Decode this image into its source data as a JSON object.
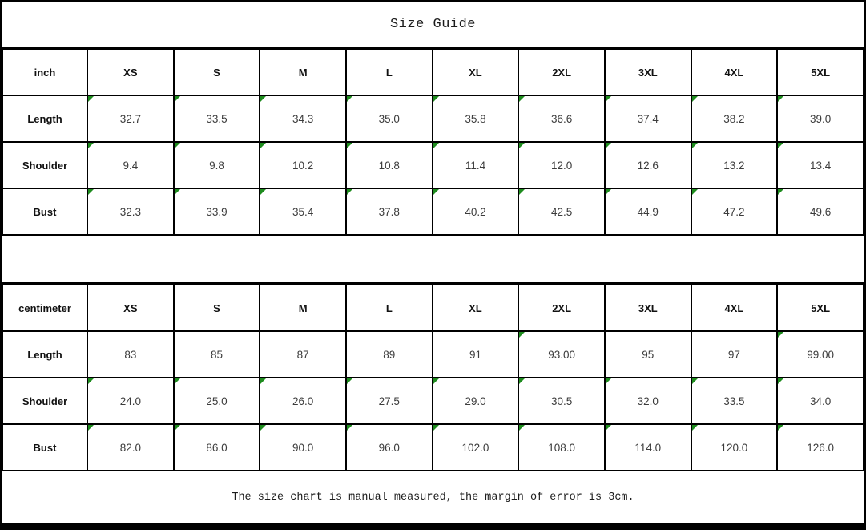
{
  "title": "Size Guide",
  "colors": {
    "marker_green": "#1e8c1e",
    "border_black": "#000000",
    "cell_text": "#3c3c3c"
  },
  "tables": [
    {
      "unit_label": "inch",
      "sizes": [
        "XS",
        "S",
        "M",
        "L",
        "XL",
        "2XL",
        "3XL",
        "4XL",
        "5XL"
      ],
      "rows": [
        {
          "label": "Length",
          "values": [
            "32.7",
            "33.5",
            "34.3",
            "35.0",
            "35.8",
            "36.6",
            "37.4",
            "38.2",
            "39.0"
          ],
          "marked": [
            true,
            true,
            true,
            true,
            true,
            true,
            true,
            true,
            true
          ]
        },
        {
          "label": "Shoulder",
          "values": [
            "9.4",
            "9.8",
            "10.2",
            "10.8",
            "11.4",
            "12.0",
            "12.6",
            "13.2",
            "13.4"
          ],
          "marked": [
            true,
            true,
            true,
            true,
            true,
            true,
            true,
            true,
            true
          ]
        },
        {
          "label": "Bust",
          "values": [
            "32.3",
            "33.9",
            "35.4",
            "37.8",
            "40.2",
            "42.5",
            "44.9",
            "47.2",
            "49.6"
          ],
          "marked": [
            true,
            true,
            true,
            true,
            true,
            true,
            true,
            true,
            true
          ]
        }
      ]
    },
    {
      "unit_label": "centimeter",
      "sizes": [
        "XS",
        "S",
        "M",
        "L",
        "XL",
        "2XL",
        "3XL",
        "4XL",
        "5XL"
      ],
      "rows": [
        {
          "label": "Length",
          "values": [
            "83",
            "85",
            "87",
            "89",
            "91",
            "93.00",
            "95",
            "97",
            "99.00"
          ],
          "marked": [
            false,
            false,
            false,
            false,
            false,
            true,
            false,
            false,
            true
          ]
        },
        {
          "label": "Shoulder",
          "values": [
            "24.0",
            "25.0",
            "26.0",
            "27.5",
            "29.0",
            "30.5",
            "32.0",
            "33.5",
            "34.0"
          ],
          "marked": [
            true,
            true,
            true,
            true,
            true,
            true,
            true,
            true,
            true
          ]
        },
        {
          "label": "Bust",
          "values": [
            "82.0",
            "86.0",
            "90.0",
            "96.0",
            "102.0",
            "108.0",
            "114.0",
            "120.0",
            "126.0"
          ],
          "marked": [
            true,
            true,
            true,
            true,
            true,
            true,
            true,
            true,
            true
          ]
        }
      ]
    }
  ],
  "footer": {
    "note": "The size chart is manual measured, the margin of error is 3cm."
  }
}
